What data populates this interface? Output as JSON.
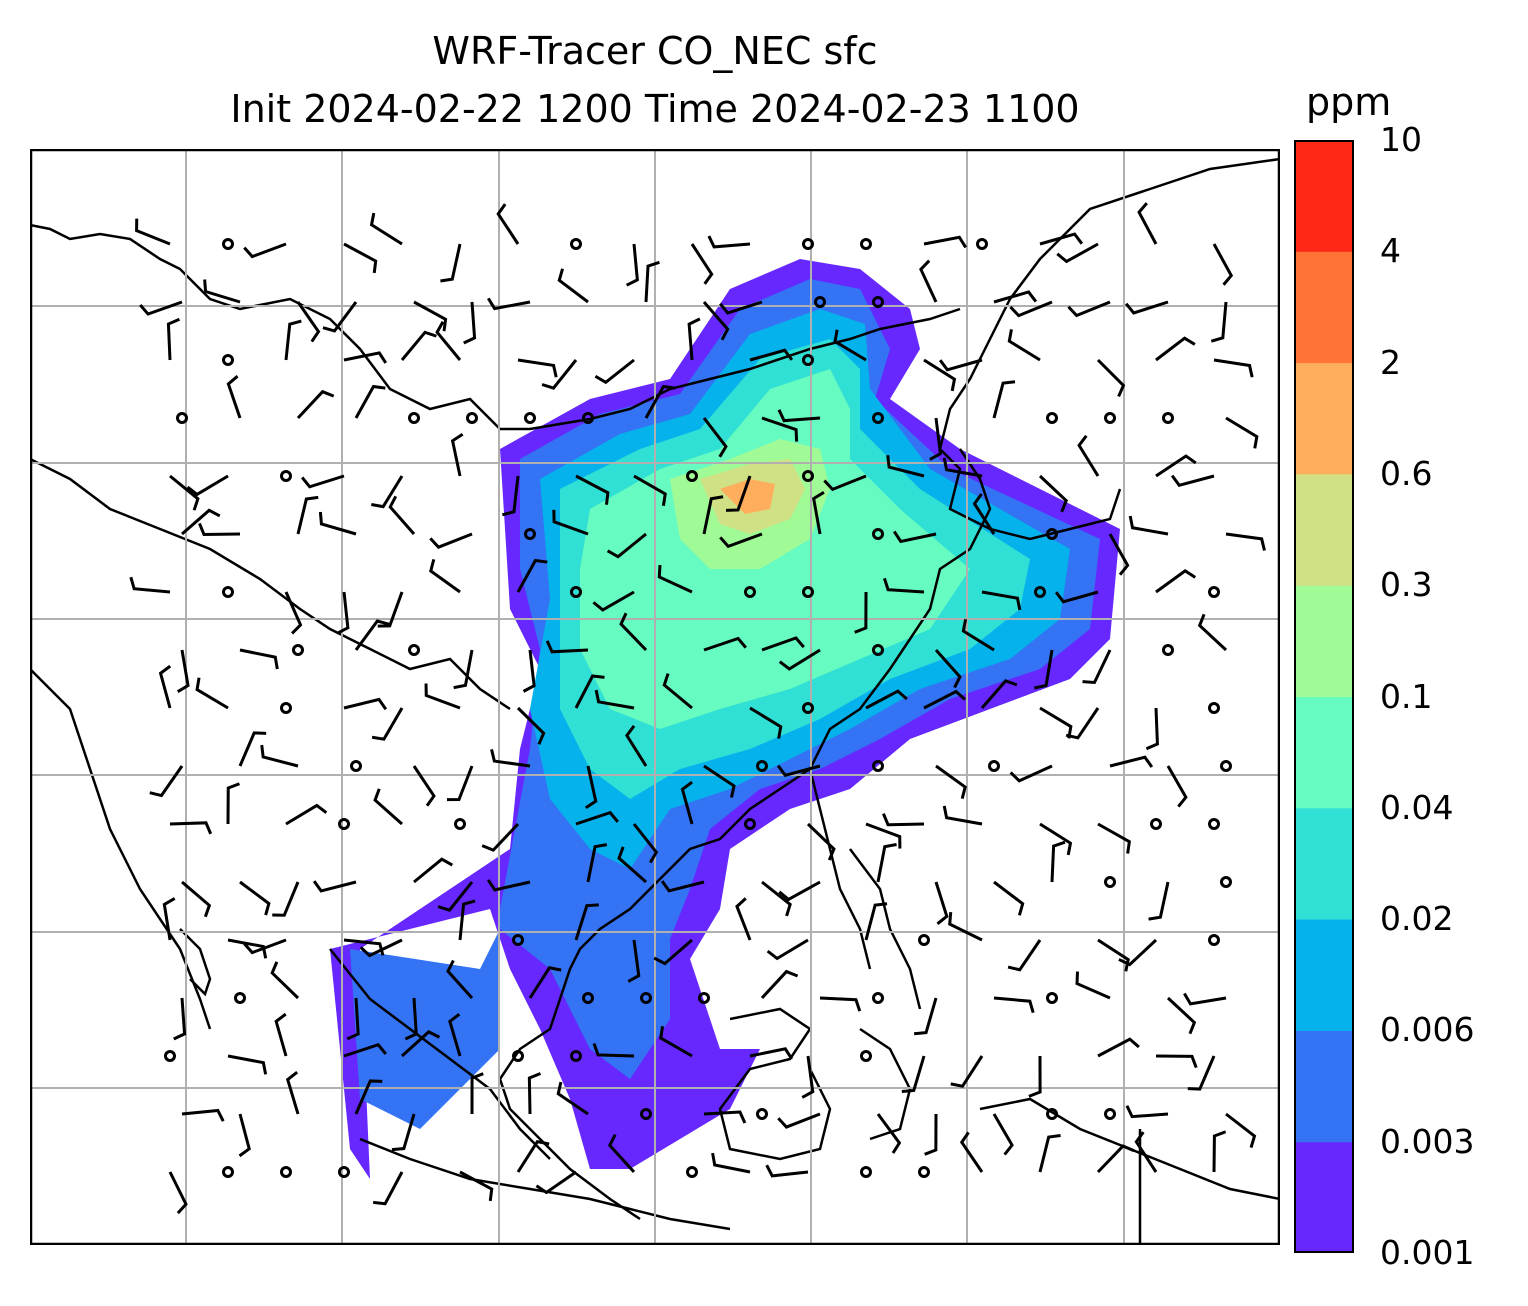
{
  "title_line1": "WRF-Tracer CO_NEC sfc",
  "title_line2": "Init 2024-02-22 1200 Time 2024-02-23 1100",
  "colorbar": {
    "unit": "ppm",
    "levels": [
      "0.001",
      "0.003",
      "0.006",
      "0.02",
      "0.04",
      "0.1",
      "0.3",
      "0.6",
      "2",
      "4",
      "10"
    ],
    "colors": [
      "#6628ff",
      "#3373f4",
      "#05b2ec",
      "#30e0d4",
      "#66fbc0",
      "#a0fb97",
      "#cfe085",
      "#ffae5e",
      "#ff7336",
      "#ff2817"
    ]
  },
  "map": {
    "projection": "lat-lon",
    "gridlines": true,
    "content": "CO tracer surface concentration (filled) with wind barbs over East and Southeast Asia"
  }
}
